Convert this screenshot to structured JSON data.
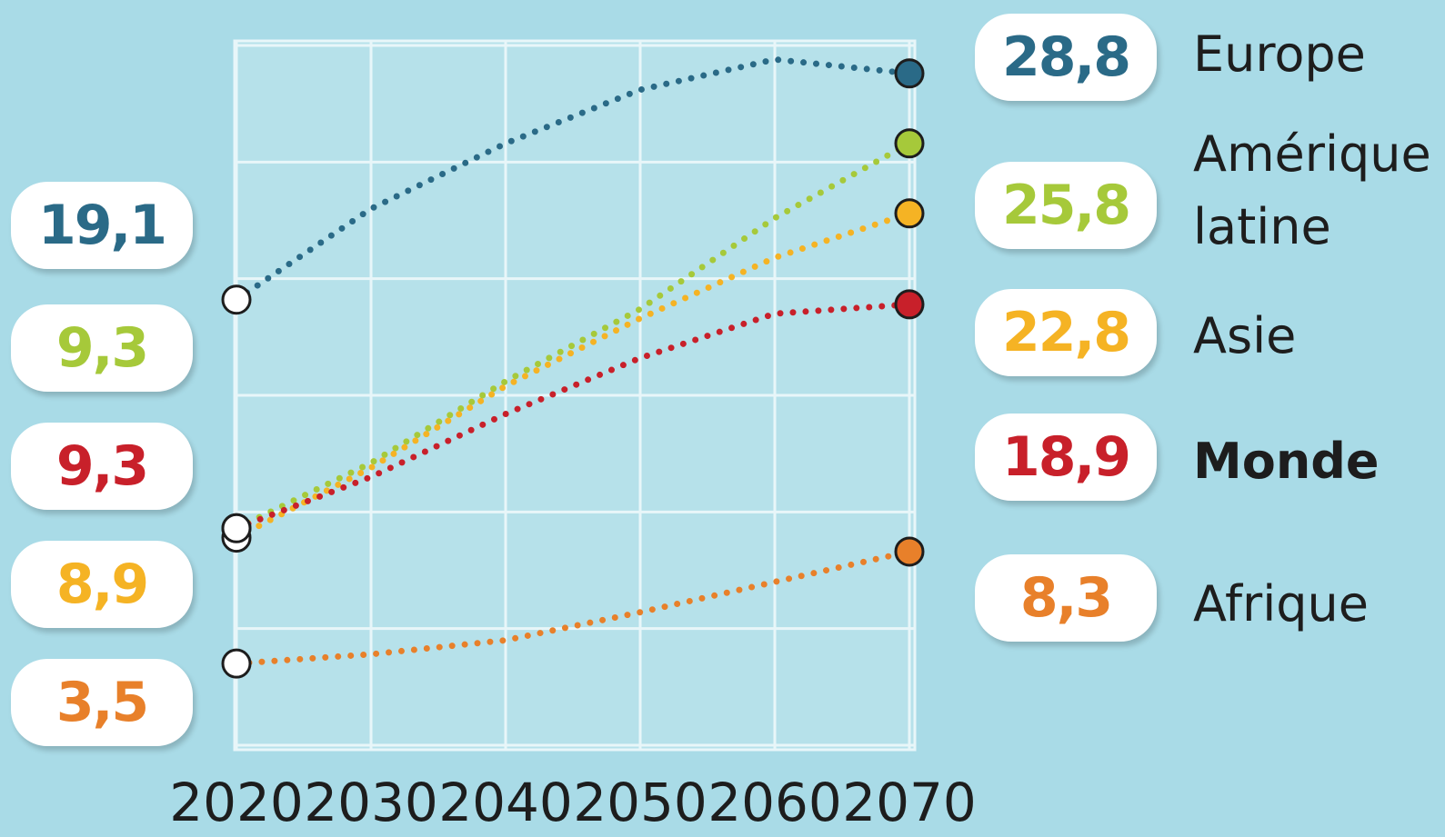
{
  "chart_data": {
    "type": "line",
    "x": [
      2020,
      2030,
      2040,
      2050,
      2060,
      2070
    ],
    "xlim": [
      2020,
      2070
    ],
    "xticks": [
      2020,
      2030,
      2040,
      2050,
      2060,
      2070
    ],
    "ylim": [
      0,
      30
    ],
    "yticks": [
      0,
      5,
      10,
      15,
      20,
      25,
      30
    ],
    "grid": true,
    "series": [
      {
        "name": "Europe",
        "color": "#2a6a87",
        "values": [
          19.1,
          23.0,
          25.8,
          28.1,
          29.4,
          28.8
        ],
        "value_labels": [
          "19,1",
          null,
          null,
          null,
          null,
          "28,8"
        ]
      },
      {
        "name": "Amérique latine",
        "color": "#a6c93a",
        "values": [
          9.3,
          12.1,
          15.6,
          18.7,
          22.6,
          25.8
        ],
        "value_labels": [
          "9,3",
          null,
          null,
          null,
          null,
          "25,8"
        ]
      },
      {
        "name": "Asie",
        "color": "#f5b324",
        "values": [
          8.9,
          11.9,
          15.4,
          18.3,
          20.9,
          22.8
        ],
        "value_labels": [
          "8,9",
          null,
          null,
          null,
          null,
          "22,8"
        ]
      },
      {
        "name": "Monde",
        "color": "#c8202a",
        "values": [
          9.3,
          11.5,
          14.2,
          16.6,
          18.5,
          18.9
        ],
        "value_labels": [
          "9,3",
          null,
          null,
          null,
          null,
          "18,9"
        ]
      },
      {
        "name": "Afrique",
        "color": "#e8802a",
        "values": [
          3.5,
          3.9,
          4.5,
          5.7,
          7.0,
          8.3
        ],
        "value_labels": [
          "3,5",
          null,
          null,
          null,
          null,
          "8,3"
        ]
      }
    ]
  }
}
